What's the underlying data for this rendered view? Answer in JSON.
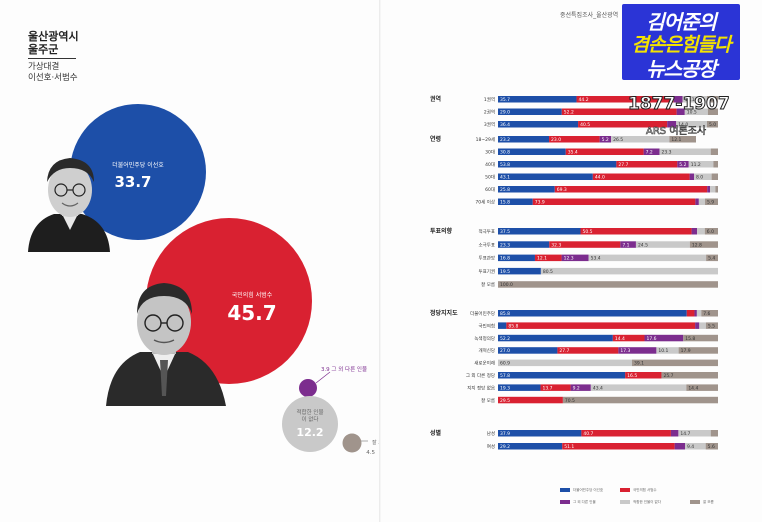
{
  "header": {
    "region_line1": "울산광역시",
    "region_line2": "울주군",
    "matchup_line1": "가상대결",
    "matchup_line2": "이선호·서범수",
    "survey_tag": "중선특집조사_울산광역",
    "logo_line1": "김어준의",
    "logo_line2": "겸손은힘들다",
    "logo_line3": "뉴스공장",
    "phone": "1877-1907",
    "ars": "ARS 여론조사"
  },
  "colors": {
    "dem": "#1d4fa8",
    "ppp": "#d92131",
    "other": "#7c2d8e",
    "none": "#c9c9c9",
    "dk": "#a0948c"
  },
  "chart_data": [
    {
      "type": "bubble",
      "bubbles": [
        {
          "label": "더불어민주당 이선호",
          "value": 33.7,
          "color": "#1d4fa8"
        },
        {
          "label": "국민의힘 서범수",
          "value": 45.7,
          "color": "#d92131"
        },
        {
          "label": "그 외 다른 인물",
          "value": 3.9,
          "color": "#7c2d8e"
        },
        {
          "label": "적합한 인물이 없다",
          "value": 12.2,
          "color": "#c9c9c9"
        },
        {
          "label": "잘 모름",
          "value": 4.5,
          "color": "#a0948c"
        }
      ]
    },
    {
      "type": "stacked-bar",
      "series": [
        {
          "name": "더불어민주당 이선호",
          "color": "#1d4fa8"
        },
        {
          "name": "국민의힘 서범수",
          "color": "#d92131"
        },
        {
          "name": "그 외 다른 인물",
          "color": "#7c2d8e"
        },
        {
          "name": "적합한 인물이 없다",
          "color": "#c9c9c9"
        },
        {
          "name": "잘 모름",
          "color": "#a0948c"
        }
      ],
      "groups": [
        {
          "name": "권역",
          "rows": [
            {
              "label": "1권역",
              "values": [
                35.7,
                44.2,
                4.0,
                11.1,
                5.0
              ]
            },
            {
              "label": "2권역",
              "values": [
                29.0,
                52.2,
                3.7,
                10.5,
                4.6
              ]
            },
            {
              "label": "3권역",
              "values": [
                36.4,
                40.5,
                4.1,
                14.0,
                5.0
              ]
            }
          ]
        },
        {
          "name": "연령",
          "rows": [
            {
              "label": "18~29세",
              "values": [
                23.2,
                23.0,
                5.2,
                26.5,
                12.1
              ]
            },
            {
              "label": "30대",
              "values": [
                30.8,
                35.4,
                7.2,
                23.3,
                3.3
              ]
            },
            {
              "label": "40대",
              "values": [
                53.8,
                27.7,
                5.2,
                11.2,
                2.1
              ]
            },
            {
              "label": "50대",
              "values": [
                43.1,
                44.0,
                2.0,
                8.0,
                2.9
              ]
            },
            {
              "label": "60대",
              "values": [
                25.8,
                69.3,
                1.3,
                2.4,
                1.2
              ]
            },
            {
              "label": "70세 이상",
              "values": [
                15.8,
                73.9,
                1.6,
                2.8,
                5.9
              ]
            }
          ]
        },
        {
          "name": "투표의향",
          "rows": [
            {
              "label": "적극투표",
              "values": [
                37.5,
                50.5,
                2.5,
                3.5,
                6.0
              ]
            },
            {
              "label": "소극투표",
              "values": [
                23.3,
                32.3,
                7.1,
                24.5,
                12.8
              ]
            },
            {
              "label": "투표관망",
              "values": [
                16.8,
                12.1,
                12.3,
                53.4,
                5.4
              ]
            },
            {
              "label": "투표기권",
              "values": [
                19.5,
                0,
                0,
                80.5,
                0
              ]
            },
            {
              "label": "잘 모름",
              "values": [
                0,
                0,
                0,
                0,
                100.0
              ]
            }
          ]
        },
        {
          "name": "정당지지도",
          "rows": [
            {
              "label": "더불어민주당",
              "values": [
                85.8,
                3.5,
                1.1,
                2.0,
                7.6
              ]
            },
            {
              "label": "국민의힘",
              "values": [
                3.8,
                85.8,
                1.9,
                3.0,
                5.5
              ]
            },
            {
              "label": "녹색정의당",
              "values": [
                52.2,
                14.4,
                17.6,
                0,
                15.8
              ]
            },
            {
              "label": "개혁신당",
              "values": [
                27.0,
                27.7,
                17.3,
                10.1,
                17.9
              ]
            },
            {
              "label": "새로운미래",
              "values": [
                0,
                0,
                0,
                60.9,
                39.1
              ]
            },
            {
              "label": "그 외 다른 정당",
              "values": [
                57.8,
                16.5,
                0,
                0,
                25.7
              ]
            },
            {
              "label": "지지 정당 없음",
              "values": [
                19.3,
                13.7,
                9.2,
                43.4,
                14.4
              ]
            },
            {
              "label": "잘 모름",
              "values": [
                0,
                29.5,
                0,
                0,
                70.5
              ]
            }
          ]
        },
        {
          "name": "성별",
          "rows": [
            {
              "label": "남성",
              "values": [
                37.9,
                40.7,
                3.4,
                14.7,
                3.3
              ]
            },
            {
              "label": "여성",
              "values": [
                29.2,
                51.1,
                4.7,
                9.4,
                5.6
              ]
            }
          ]
        }
      ]
    }
  ]
}
